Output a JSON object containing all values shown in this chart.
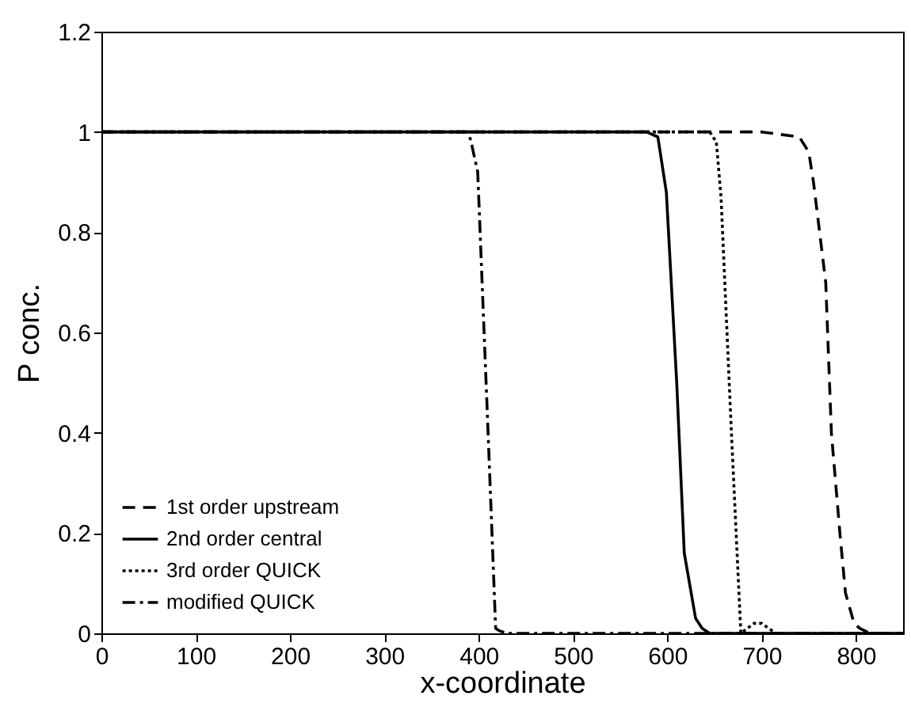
{
  "chart_data": {
    "type": "line",
    "xlabel": "x-coordinate",
    "ylabel": "P conc.",
    "xlim": [
      0,
      850
    ],
    "ylim": [
      0,
      1.2
    ],
    "xticks": [
      0,
      100,
      200,
      300,
      400,
      500,
      600,
      700,
      800
    ],
    "yticks": [
      0,
      0.2,
      0.4,
      0.6,
      0.8,
      1,
      1.2
    ],
    "grid": false,
    "legend": "bottom left",
    "marker": "none",
    "series": [
      {
        "name": "1st order upstream",
        "color": "#000000",
        "line_style": "dashed",
        "x": [
          0,
          700,
          740,
          750,
          755,
          768,
          774,
          783,
          789,
          798,
          804,
          815,
          850
        ],
        "values": [
          1,
          1,
          0.99,
          0.96,
          0.9,
          0.7,
          0.4,
          0.2,
          0.08,
          0.02,
          0.01,
          0,
          0
        ]
      },
      {
        "name": "2nd order central",
        "color": "#000000",
        "line_style": "solid",
        "x": [
          0,
          578,
          590,
          599,
          610,
          618,
          630,
          637,
          645,
          850
        ],
        "values": [
          1,
          1,
          0.99,
          0.88,
          0.5,
          0.16,
          0.03,
          0.01,
          0,
          0
        ]
      },
      {
        "name": "3rd order QUICK",
        "color": "#000000",
        "line_style": "dotted",
        "x": [
          0,
          645,
          652,
          657,
          668,
          678,
          685,
          692,
          700,
          715,
          850
        ],
        "values": [
          1,
          1,
          0.98,
          0.87,
          0.4,
          0,
          0.01,
          0.02,
          0.02,
          0,
          0
        ]
      },
      {
        "name": "modified QUICK",
        "color": "#000000",
        "line_style": "dashdot",
        "x": [
          0,
          389,
          392,
          399,
          410,
          418,
          422,
          430,
          850
        ],
        "values": [
          1,
          1,
          0.98,
          0.92,
          0.4,
          0.01,
          0.005,
          0,
          0
        ]
      }
    ]
  }
}
